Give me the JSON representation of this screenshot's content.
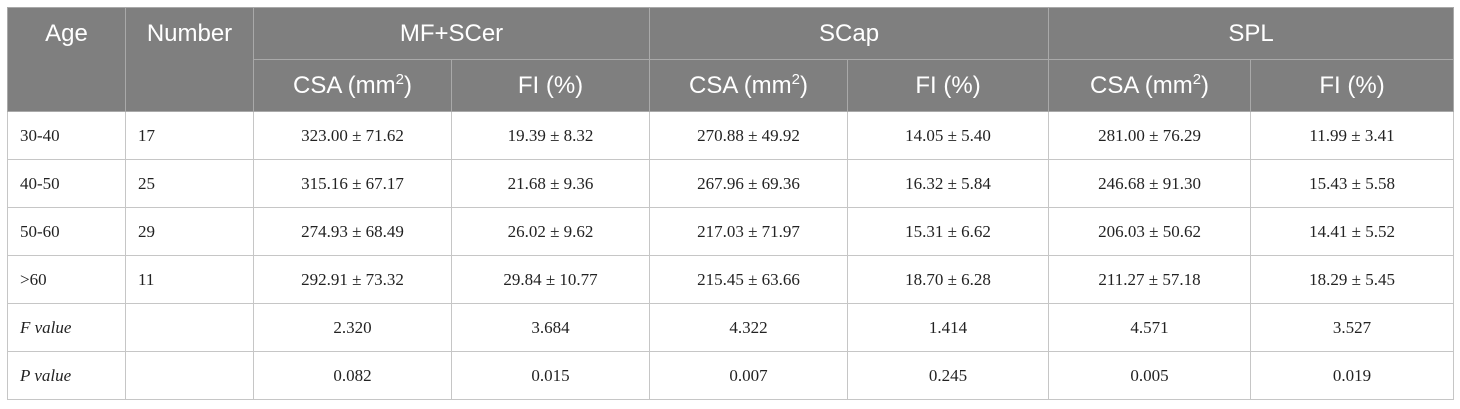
{
  "table": {
    "headers": {
      "age": "Age",
      "number": "Number",
      "groups": [
        "MF+SCer",
        "SCap",
        "SPL"
      ],
      "csa_label": "CSA (mm",
      "csa_sup": "2",
      "csa_close": ")",
      "fi_label": "FI (%)"
    },
    "rows": [
      {
        "label": "30-40",
        "number": "17",
        "cells": [
          "323.00 ± 71.62",
          "19.39 ± 8.32",
          "270.88 ± 49.92",
          "14.05 ± 5.40",
          "281.00 ± 76.29",
          "11.99 ± 3.41"
        ]
      },
      {
        "label": "40-50",
        "number": "25",
        "cells": [
          "315.16 ± 67.17",
          "21.68 ± 9.36",
          "267.96 ± 69.36",
          "16.32 ± 5.84",
          "246.68 ± 91.30",
          "15.43 ± 5.58"
        ]
      },
      {
        "label": "50-60",
        "number": "29",
        "cells": [
          "274.93 ± 68.49",
          "26.02 ± 9.62",
          "217.03 ± 71.97",
          "15.31 ± 6.62",
          "206.03 ± 50.62",
          "14.41 ± 5.52"
        ]
      },
      {
        "label": ">60",
        "number": "11",
        "cells": [
          "292.91 ± 73.32",
          "29.84 ± 10.77",
          "215.45 ± 63.66",
          "18.70 ± 6.28",
          "211.27 ± 57.18",
          "18.29 ± 5.45"
        ]
      }
    ],
    "stats": [
      {
        "label": "F value",
        "number": "",
        "cells": [
          "2.320",
          "3.684",
          "4.322",
          "1.414",
          "4.571",
          "3.527"
        ]
      },
      {
        "label": "P value",
        "number": "",
        "cells": [
          "0.082",
          "0.015",
          "0.007",
          "0.245",
          "0.005",
          "0.019"
        ]
      }
    ]
  }
}
